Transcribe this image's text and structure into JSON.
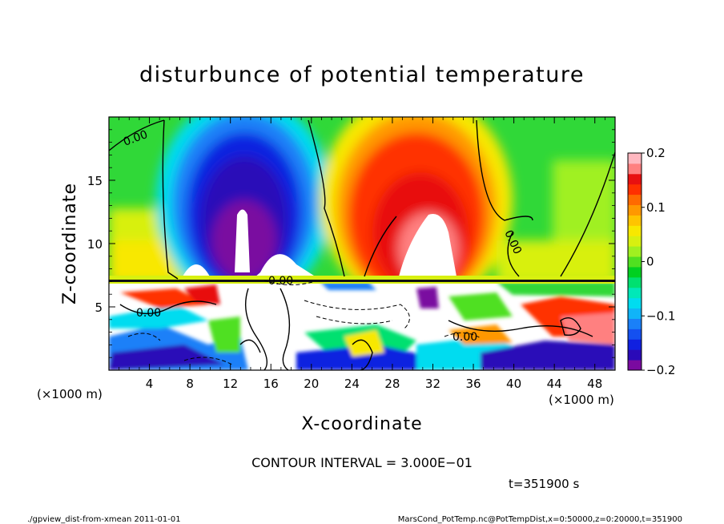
{
  "chart_data": {
    "type": "heatmap",
    "title": "disturbunce of potential temperature",
    "xlabel": "X-coordinate",
    "ylabel": "Z-coordinate",
    "x_unit_left": "(×1000 m)",
    "x_unit_right": "(×1000 m)",
    "xlim": [
      0,
      50
    ],
    "ylim": [
      0,
      20
    ],
    "xticks": [
      4,
      8,
      12,
      16,
      20,
      24,
      28,
      32,
      36,
      40,
      44,
      48
    ],
    "yticks": [
      5,
      10,
      15
    ],
    "colorbar": {
      "ticks": [
        {
          "value": 0.2,
          "label": "0.2"
        },
        {
          "value": 0.1,
          "label": "0.1"
        },
        {
          "value": 0,
          "label": "0"
        },
        {
          "value": -0.1,
          "label": "−0.1"
        },
        {
          "value": -0.2,
          "label": "−0.2"
        }
      ],
      "range": [
        -0.2,
        0.2
      ],
      "colors": [
        "#7a0aa0",
        "#2a0ab8",
        "#1020e0",
        "#1450f0",
        "#1a80f8",
        "#10b4f8",
        "#00dcf0",
        "#00e8b8",
        "#00e070",
        "#00d020",
        "#50e020",
        "#a0f020",
        "#d8f010",
        "#f8e800",
        "#ffc400",
        "#ff9800",
        "#ff6a00",
        "#ff3000",
        "#e81010",
        "#ff8080",
        "#ffb8c0"
      ]
    },
    "contour_labels": [
      "0.00",
      "0.00",
      "0.00",
      "0.00",
      "0.00"
    ],
    "contour_interval_text": "CONTOUR INTERVAL = 3.000E−01",
    "time_text": "t=351900 s"
  },
  "footer": {
    "left": "./gpview_dist-from-xmean  2011-01-01",
    "right": "MarsCond_PotTemp.nc@PotTempDist,x=0:50000,z=0:20000,t=351900"
  }
}
